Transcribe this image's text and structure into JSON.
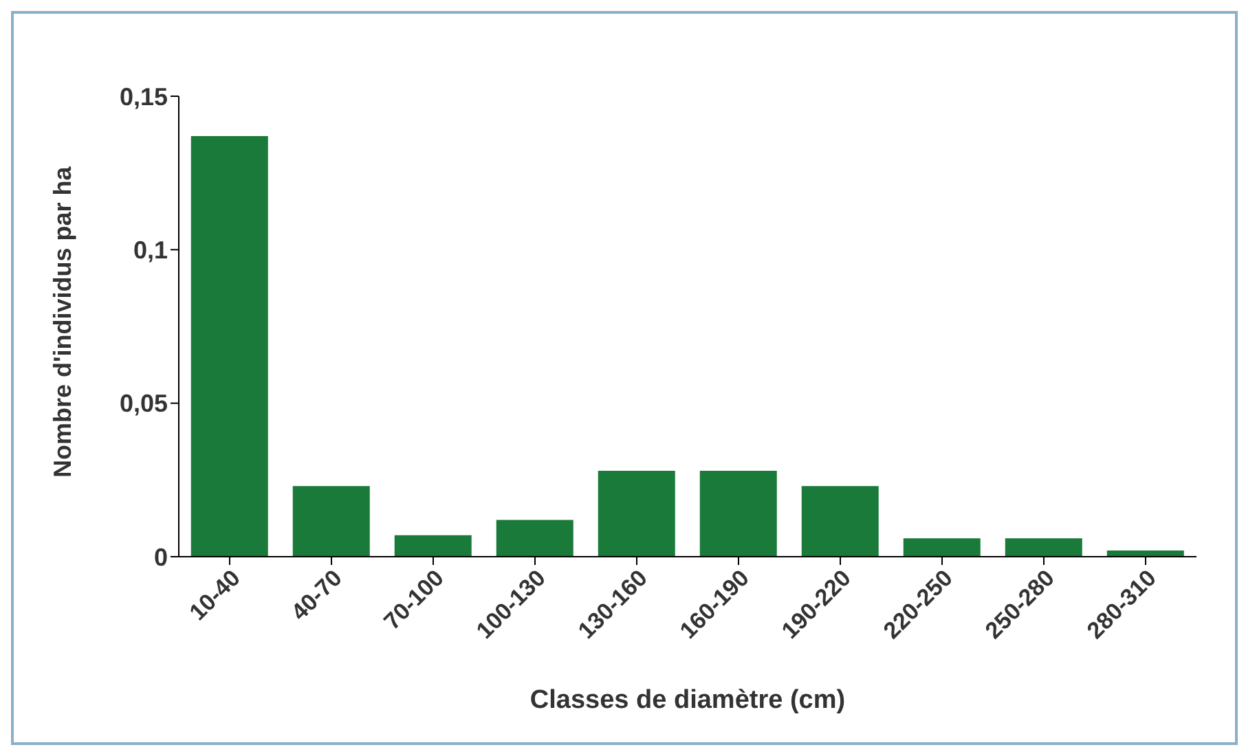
{
  "chart_data": {
    "type": "bar",
    "xlabel": "Classes de diamètre (cm)",
    "ylabel": "Nombre d'individus par ha",
    "categories": [
      "10-40",
      "40-70",
      "70-100",
      "100-130",
      "130-160",
      "160-190",
      "190-220",
      "220-250",
      "250-280",
      "280-310"
    ],
    "values": [
      0.137,
      0.023,
      0.007,
      0.012,
      0.028,
      0.028,
      0.023,
      0.006,
      0.006,
      0.002
    ],
    "color": "#1a7a3a",
    "ylim": [
      0,
      0.15
    ],
    "yticks": [
      0,
      {
        "value": 0.05,
        "label": "0,05"
      },
      {
        "value": 0.1,
        "label": "0,1"
      },
      {
        "value": 0.15,
        "label": "0,15"
      }
    ],
    "grid": false,
    "legend": false
  }
}
